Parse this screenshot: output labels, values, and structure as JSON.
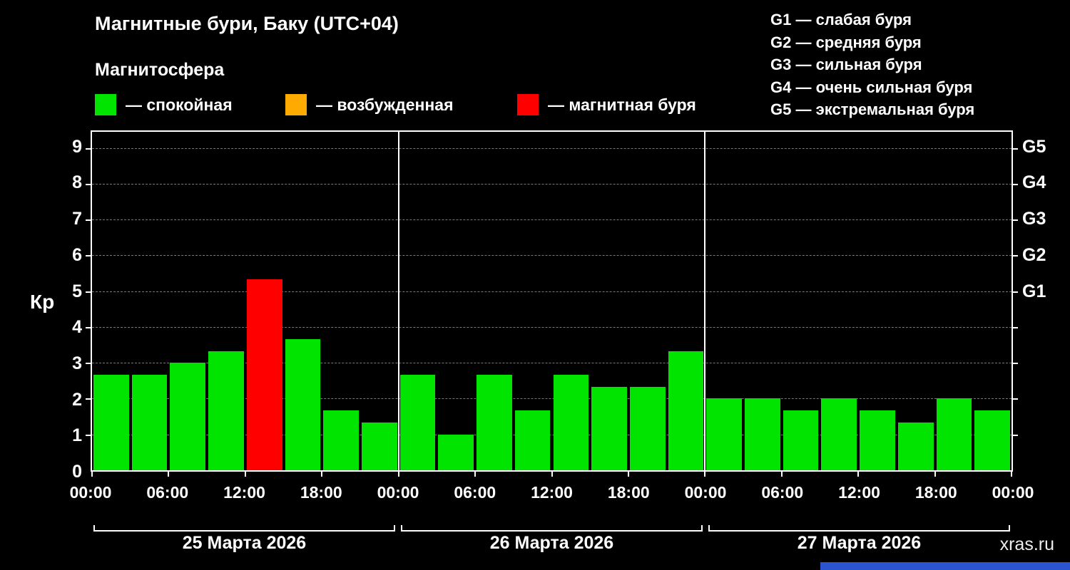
{
  "header": {
    "title": "Магнитные бури, Баку (UTC+04)",
    "subtitle": "Магнитосфера"
  },
  "legend": {
    "items": [
      {
        "name": "quiet",
        "label": "— спокойная",
        "color": "#00e400"
      },
      {
        "name": "active",
        "label": "— возбужденная",
        "color": "#ffaa00"
      },
      {
        "name": "storm",
        "label": "— магнитная буря",
        "color": "#ff0000"
      }
    ]
  },
  "storm_scale_legend": {
    "lines": [
      "G1 — слабая буря",
      "G2 — средняя буря",
      "G3 — сильная буря",
      "G4 — очень сильная буря",
      "G5 — экстремальная буря"
    ]
  },
  "watermark": "xras.ru",
  "footer_accent_color": "#2b55d0",
  "chart_data": {
    "type": "bar",
    "title": "Магнитные бури, Баку (UTC+04)",
    "ylabel": "Кр",
    "ylim": [
      0,
      9.45
    ],
    "yticks": [
      0,
      1,
      2,
      3,
      4,
      5,
      6,
      7,
      8,
      9
    ],
    "right_axis": [
      {
        "label": "G1",
        "kp": 5
      },
      {
        "label": "G2",
        "kp": 6
      },
      {
        "label": "G3",
        "kp": 7
      },
      {
        "label": "G4",
        "kp": 8
      },
      {
        "label": "G5",
        "kp": 9
      }
    ],
    "x_tick_labels": [
      "00:00",
      "06:00",
      "12:00",
      "18:00",
      "00:00",
      "06:00",
      "12:00",
      "18:00",
      "00:00",
      "06:00",
      "12:00",
      "18:00",
      "00:00"
    ],
    "bar_interval_hours": 3,
    "days": [
      {
        "date": "25 Марта 2026",
        "values": [
          2.67,
          2.67,
          3.0,
          3.33,
          5.33,
          3.67,
          1.67,
          1.33
        ]
      },
      {
        "date": "26 Марта 2026",
        "values": [
          2.67,
          1.0,
          2.67,
          1.67,
          2.67,
          2.33,
          2.33,
          3.33
        ]
      },
      {
        "date": "27 Марта 2026",
        "values": [
          2.0,
          2.0,
          1.67,
          2.0,
          1.67,
          1.33,
          2.0,
          1.67
        ]
      }
    ],
    "color_thresholds": {
      "quiet_below": 4,
      "storm_at_or_above": 5
    },
    "colors": {
      "quiet": "#00e400",
      "active": "#ffaa00",
      "storm": "#ff0000"
    },
    "grid": {
      "horizontal": "dashed",
      "color": "#787878"
    },
    "legend_position": "top"
  }
}
